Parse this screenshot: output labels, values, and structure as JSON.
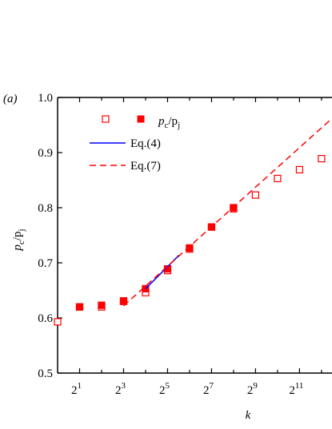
{
  "chart_data": {
    "type": "scatter",
    "panel_label": "(a)",
    "x_label": "k",
    "y_label": [
      "p",
      "c",
      "/p",
      "j"
    ],
    "log_x_base": 2,
    "xlim": [
      1,
      5700
    ],
    "ylim": [
      0.5,
      1.0
    ],
    "xticks": [
      {
        "value": 2,
        "label": {
          "base": "2",
          "exp": "1"
        }
      },
      {
        "value": 8,
        "label": {
          "base": "2",
          "exp": "3"
        }
      },
      {
        "value": 32,
        "label": {
          "base": "2",
          "exp": "5"
        }
      },
      {
        "value": 128,
        "label": {
          "base": "2",
          "exp": "7"
        }
      },
      {
        "value": 512,
        "label": {
          "base": "2",
          "exp": "9"
        }
      },
      {
        "value": 2048,
        "label": {
          "base": "2",
          "exp": "11"
        }
      }
    ],
    "xminorticks": [
      4,
      16,
      64,
      256,
      1024,
      4096
    ],
    "yticks": [
      {
        "value": 0.5,
        "label": "0.5"
      },
      {
        "value": 0.6,
        "label": "0.6"
      },
      {
        "value": 0.7,
        "label": "0.7"
      },
      {
        "value": 0.8,
        "label": "0.8"
      },
      {
        "value": 0.9,
        "label": "0.9"
      },
      {
        "value": 1.0,
        "label": "1.0"
      }
    ],
    "marker_legend_label": [
      "p",
      "c",
      "/p",
      "j"
    ],
    "series": [
      {
        "marker": "open-square",
        "color": "#ff0000",
        "x": [
          1,
          2,
          4,
          8,
          16,
          32,
          64,
          128,
          256,
          512,
          1024,
          2048,
          4096
        ],
        "values": [
          0.593,
          0.62,
          0.62,
          0.63,
          0.646,
          0.686,
          0.725,
          0.765,
          0.798,
          0.823,
          0.853,
          0.869,
          0.889
        ]
      },
      {
        "marker": "filled-square",
        "color": "#ff0000",
        "x": [
          2,
          4,
          8,
          16,
          32,
          64,
          128,
          256
        ],
        "values": [
          0.62,
          0.623,
          0.631,
          0.653,
          0.689,
          0.727,
          0.765,
          0.8
        ]
      },
      {
        "name": "Eq.(4)",
        "line": "solid",
        "color": "#0000ff",
        "x": [
          16,
          46
        ],
        "values": [
          0.653,
          0.714
        ]
      },
      {
        "name": "Eq.(7)",
        "line": "dashed",
        "color": "#ff0000",
        "x": [
          8,
          5700
        ],
        "values": [
          0.622,
          0.962
        ]
      }
    ]
  }
}
